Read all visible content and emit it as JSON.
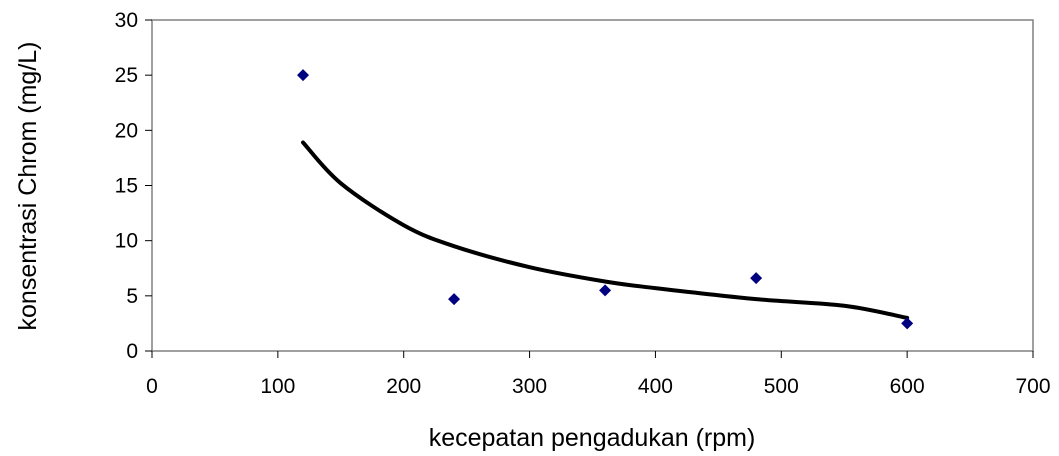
{
  "chart_data": {
    "type": "scatter",
    "title": "",
    "xlabel": "kecepatan pengadukan (rpm)",
    "ylabel": "konsentrasi Chrom (mg/L)",
    "xlim": [
      0,
      700
    ],
    "ylim": [
      0,
      30
    ],
    "x_ticks": [
      "0",
      "100",
      "200",
      "300",
      "400",
      "500",
      "600",
      "700"
    ],
    "y_ticks": [
      "0",
      "5",
      "10",
      "15",
      "20",
      "25",
      "30"
    ],
    "grid": false,
    "legend": "none",
    "series": [
      {
        "type": "scatter",
        "marker": "diamond",
        "color": "#000080",
        "x": [
          120,
          240,
          360,
          480,
          600
        ],
        "y": [
          25.0,
          4.7,
          5.5,
          6.6,
          2.5
        ]
      },
      {
        "type": "line",
        "trendline": "power",
        "color": "#000000",
        "x": [
          120,
          150,
          200,
          240,
          300,
          360,
          400,
          480,
          550,
          600
        ],
        "y": [
          18.9,
          15.2,
          11.4,
          9.5,
          7.6,
          6.3,
          5.7,
          4.7,
          4.1,
          3.0
        ]
      }
    ]
  }
}
